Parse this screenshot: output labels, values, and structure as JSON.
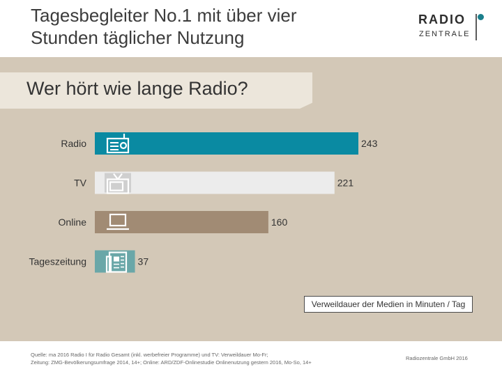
{
  "title": {
    "line1": "Tagesbegleiter No.1 mit über vier",
    "line2": "Stunden täglicher Nutzung"
  },
  "logo": {
    "line1": "RADIO",
    "line2": "ZENTRALE",
    "accent": "#1b7f8c"
  },
  "subtitle": "Wer hört wie lange Radio?",
  "chart_data": {
    "type": "bar",
    "orientation": "horizontal",
    "categories": [
      "Radio",
      "TV",
      "Online",
      "Tageszeitung"
    ],
    "values": [
      243,
      221,
      160,
      37
    ],
    "value_labels": [
      "243",
      "221",
      "160",
      "37"
    ],
    "colors": [
      "#0a8aa2",
      "#ececec",
      "#a18b74",
      "#6aa7a8"
    ],
    "icons": [
      "radio-icon",
      "tv-icon",
      "laptop-icon",
      "newspaper-icon"
    ],
    "xlim": [
      0,
      243
    ],
    "legend": "Verweildauer der Medien in Minuten / Tag",
    "grid": false
  },
  "footer": {
    "source_line1": "Quelle: ma 2016 Radio I für Radio Gesamt (inkl. werbefreier Programme) und TV: Verweildauer Mo-Fr;",
    "source_line2": "Zeitung: ZMG-Bevölkerungsumfrage 2014, 14+; Online: ARD/ZDF-Onlinestudie Onlinenutzung gestern 2016, Mo-So, 14+",
    "copyright": "Radiozentrale GmbH 2016"
  }
}
